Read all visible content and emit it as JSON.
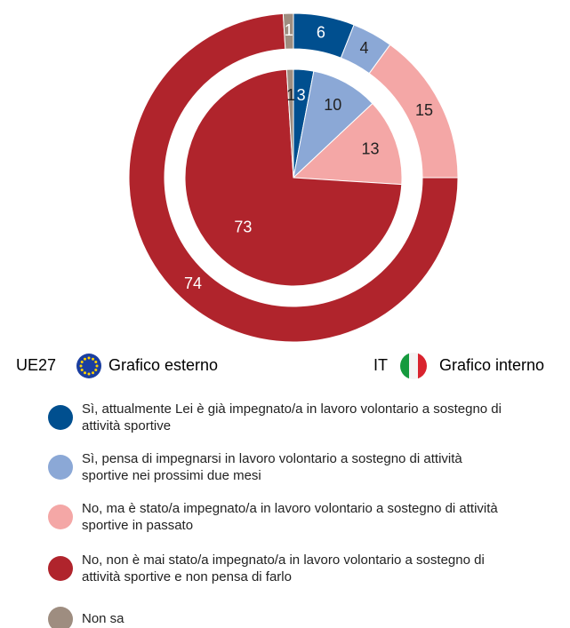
{
  "chart_data": {
    "type": "nested-pie",
    "categories": [
      "Sì, attualmente Lei è già impegnato/a in lavoro volontario a sostegno di attività sportive",
      "Sì, pensa di impegnarsi in lavoro volontario a sostegno di attività sportive nei prossimi due mesi",
      "No, ma è stato/a impegnato/a in lavoro volontario a sostegno di attività sportive in passato",
      "No, non è mai stato/a impegnato/a in lavoro volontario a sostegno di attività sportive e non pensa di farlo",
      "Non sa"
    ],
    "colors": [
      "#004f8f",
      "#8ba8d6",
      "#f4a7a6",
      "#b0242c",
      "#9e8d80"
    ],
    "series": [
      {
        "name": "UE27",
        "label": "Grafico esterno",
        "values": [
          6,
          4,
          15,
          74,
          1
        ]
      },
      {
        "name": "IT",
        "label": "Grafico interno",
        "values": [
          3,
          10,
          13,
          73,
          1
        ]
      }
    ]
  }
}
